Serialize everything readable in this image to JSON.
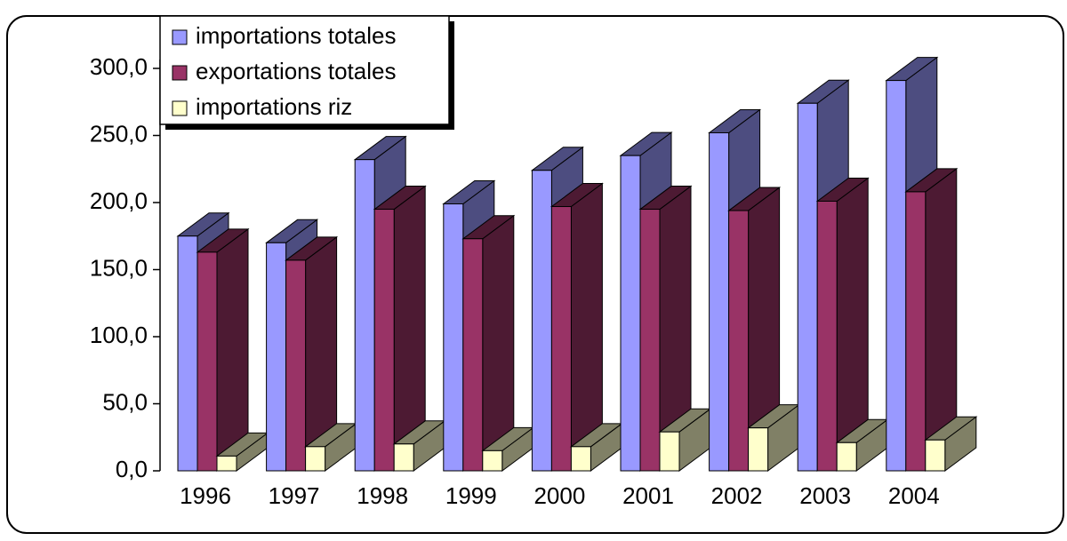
{
  "chart_data": {
    "type": "bar3d",
    "categories": [
      "1996",
      "1997",
      "1998",
      "1999",
      "2000",
      "2001",
      "2002",
      "2003",
      "2004"
    ],
    "series": [
      {
        "name": "importations totales",
        "color": "#9999ff",
        "side": "#4d4d80",
        "values": [
          175,
          170,
          232,
          199,
          224,
          235,
          252,
          274,
          291
        ]
      },
      {
        "name": "exportations totales",
        "color": "#993366",
        "side": "#4d1a33",
        "values": [
          163,
          157,
          195,
          173,
          197,
          195,
          194,
          201,
          208
        ]
      },
      {
        "name": "importations riz",
        "color": "#ffffcc",
        "side": "#808066",
        "values": [
          11,
          18,
          20,
          15,
          18,
          29,
          32,
          21,
          23
        ]
      }
    ],
    "ylim": [
      0,
      300
    ],
    "yticks": [
      {
        "value": 0,
        "label": "0,0"
      },
      {
        "value": 50,
        "label": "50,0"
      },
      {
        "value": 100,
        "label": "100,0"
      },
      {
        "value": 150,
        "label": "150,0"
      },
      {
        "value": 200,
        "label": "200,0"
      },
      {
        "value": 250,
        "label": "250,0"
      },
      {
        "value": 300,
        "label": "300,0"
      }
    ],
    "legend": "top-left"
  }
}
